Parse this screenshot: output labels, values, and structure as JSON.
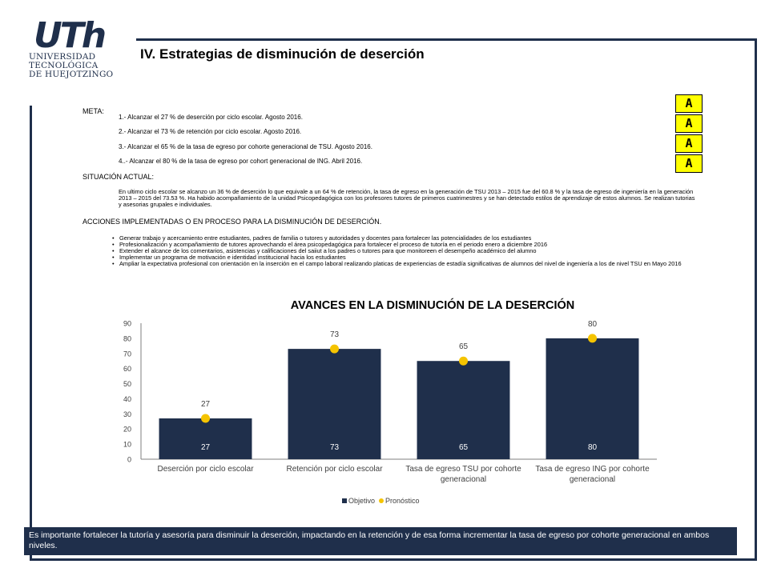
{
  "logo": {
    "mark": "UTh",
    "lines": [
      "UNIVERSIDAD",
      "TECNOLÓGICA",
      "DE HUEJOTZINGO"
    ]
  },
  "page_title": "IV. Estrategias de disminución de deserción",
  "meta": {
    "label": "META:",
    "items": [
      "1.- Alcanzar el 27 % de deserción por ciclo escolar. Agosto 2016.",
      "2.- Alcanzar el 73 % de retención por ciclo escolar. Agosto 2016.",
      "3.- Alcanzar el 65 % de la tasa de egreso por cohorte generacional de TSU. Agosto 2016.",
      "4..- Alcanzar el 80 % de la tasa de egreso por cohort generacional de ING. Abril 2016."
    ]
  },
  "badges": [
    "A",
    "A",
    "A",
    "A"
  ],
  "badge_color": "#ffff00",
  "situacion": {
    "label": "SITUACIÓN ACTUAL:",
    "text": "En ultimo ciclo escolar se alcanzo un 36 % de deserción lo que equivale a un 64 % de retención, la tasa de egreso en la generación de TSU 2013 – 2015 fue del 60.8 % y la tasa de egreso de ingeniería en la generación 2013 – 2015 del 73.53 %. Ha habido acompañamiento de la unidad Psicopedagógica con los profesores tutores de primeros cuatrimestres y se han detectado estilos de aprendizaje de estos alumnos. Se realizan tutorias y asesorias grupales e individuales."
  },
  "acciones": {
    "label": "ACCIONES IMPLEMENTADAS O EN PROCESO PARA LA DISMINUCIÓN DE DESERCIÓN.",
    "items": [
      "Generar trabajo y acercamiento entre estudiantes, padres de familia o tutores y autoridades y docentes para fortalecer las potencialidades de los estudiantes",
      "Profesionalización y acompañamiento de tutores aprovechando el área psicopedagógica para fortalecer el proceso de tutoría en el periodo enero a diciembre 2016",
      "Extender el alcance de los comentarios, asistencias y calificaciones del saiiut a los padres o tutores para que monitoreen el desempeño académico del alumno",
      "Implementar un programa de motivación e identidad institucional hacia los estudiantes",
      "Ampliar la expectativa profesional con orientación en la inserción en el campo laboral realizando platicas de experiencias de estadía significativas de alumnos del nivel de ingeniería a los de nivel TSU en Mayo 2016"
    ]
  },
  "chart_data": {
    "type": "bar",
    "title": "AVANCES EN LA DISMINUCIÓN DE LA DESERCIÓN",
    "categories": [
      "Deserción por ciclo escolar",
      "Retención por ciclo escolar",
      "Tasa de egreso TSU por cohorte generacional",
      "Tasa de egreso ING por cohorte generacional"
    ],
    "category_lines": [
      [
        "Deserción por ciclo escolar"
      ],
      [
        "Retención por ciclo escolar"
      ],
      [
        "Tasa de egreso TSU por cohorte",
        "generacional"
      ],
      [
        "Tasa de egreso ING por cohorte",
        "generacional"
      ]
    ],
    "series": [
      {
        "name": "Objetivo",
        "type": "bar",
        "values": [
          27,
          73,
          65,
          80
        ],
        "color": "#1f2f4b"
      },
      {
        "name": "Pronóstico",
        "type": "scatter",
        "values": [
          27,
          73,
          65,
          80
        ],
        "color": "#f5c400"
      }
    ],
    "ylim": [
      0,
      90
    ],
    "yticks": [
      0,
      10,
      20,
      30,
      40,
      50,
      60,
      70,
      80,
      90
    ],
    "grid": false,
    "legend": "bottom"
  },
  "conclusion": "Es importante fortalecer la tutoría y asesoría para disminuir la deserción, impactando en la retención y de esa forma incrementar la tasa de egreso por cohorte generacional en ambos niveles."
}
